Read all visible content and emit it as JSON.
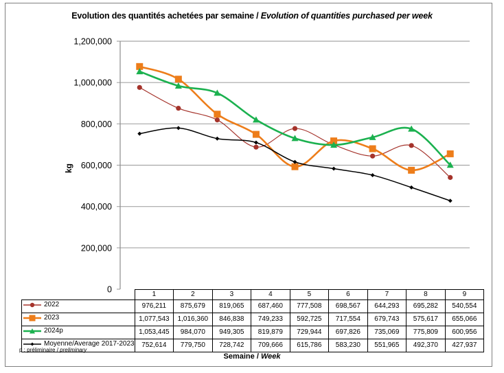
{
  "chart_data": {
    "type": "line",
    "title_fr": "Evolution des quantités achetées par semaine",
    "title_sep": " / ",
    "title_en": "Evolution of quantities purchased per week",
    "ylabel": "kg",
    "xlabel_fr": "Semaine",
    "xlabel_sep": " / ",
    "xlabel_en": "Week",
    "ylim": [
      0,
      1200000
    ],
    "yticks": [
      0,
      200000,
      400000,
      600000,
      800000,
      1000000,
      1200000
    ],
    "ytick_labels": [
      "0",
      "200,000",
      "400,000",
      "600,000",
      "800,000",
      "1,000,000",
      "1,200,000"
    ],
    "grid": true,
    "legend": "data-table-left",
    "categories": [
      "1",
      "2",
      "3",
      "4",
      "5",
      "6",
      "7",
      "8",
      "9"
    ],
    "series": [
      {
        "name": "2022",
        "color": "#a5332b",
        "marker": "circle",
        "values": [
          976211,
          875679,
          819065,
          687460,
          777508,
          698567,
          644293,
          695282,
          540554
        ],
        "labels": [
          "976,211",
          "875,679",
          "819,065",
          "687,460",
          "777,508",
          "698,567",
          "644,293",
          "695,282",
          "540,554"
        ]
      },
      {
        "name": "2023",
        "color": "#ed7d1a",
        "marker": "square",
        "values": [
          1077543,
          1016360,
          846838,
          749233,
          592725,
          717554,
          679743,
          575617,
          655066
        ],
        "labels": [
          "1,077,543",
          "1,016,360",
          "846,838",
          "749,233",
          "592,725",
          "717,554",
          "679,743",
          "575,617",
          "655,066"
        ]
      },
      {
        "name": "2024p",
        "color": "#1bb14f",
        "marker": "triangle",
        "values": [
          1053445,
          984070,
          949305,
          819879,
          729944,
          697826,
          735069,
          775809,
          600956
        ],
        "labels": [
          "1,053,445",
          "984,070",
          "949,305",
          "819,879",
          "729,944",
          "697,826",
          "735,069",
          "775,809",
          "600,956"
        ]
      },
      {
        "name": "Moyenne/Average 2017-2023",
        "color": "#000000",
        "marker": "diamond",
        "values": [
          752614,
          779750,
          728742,
          709666,
          615786,
          583230,
          551965,
          492370,
          427937
        ],
        "labels": [
          "752,614",
          "779,750",
          "728,742",
          "709,666",
          "615,786",
          "583,230",
          "551,965",
          "492,370",
          "427,937"
        ]
      }
    ]
  },
  "footnote": {
    "fr": "p : préliminaire",
    "sep": " / ",
    "en": "preliminary"
  }
}
